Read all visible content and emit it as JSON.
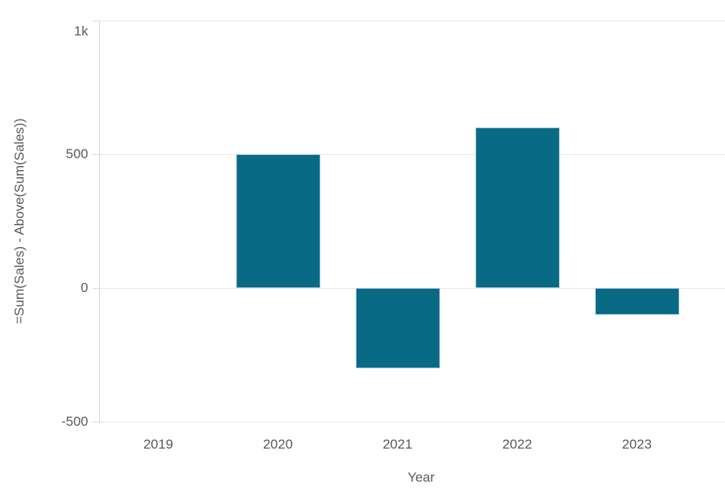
{
  "chart_data": {
    "type": "bar",
    "categories": [
      "2019",
      "2020",
      "2021",
      "2022",
      "2023"
    ],
    "values": [
      0,
      500,
      -300,
      600,
      -100
    ],
    "title": "",
    "xlabel": "Year",
    "ylabel": "=Sum(Sales) - Above(Sum(Sales))",
    "ylim": [
      -500,
      1000
    ],
    "yticks": [
      {
        "value": 1000,
        "label": "1k"
      },
      {
        "value": 500,
        "label": "500"
      },
      {
        "value": 0,
        "label": "0"
      },
      {
        "value": -500,
        "label": "-500"
      }
    ],
    "grid": true,
    "legend": "none",
    "colors": {
      "bar_fill": "#086a85",
      "bar_border": "#9dc3d2",
      "gridline": "#e8e8e8",
      "axis_line": "#d9d9d9",
      "tick_text": "#595959",
      "axis_title_text": "#595959",
      "background": "#ffffff"
    }
  }
}
